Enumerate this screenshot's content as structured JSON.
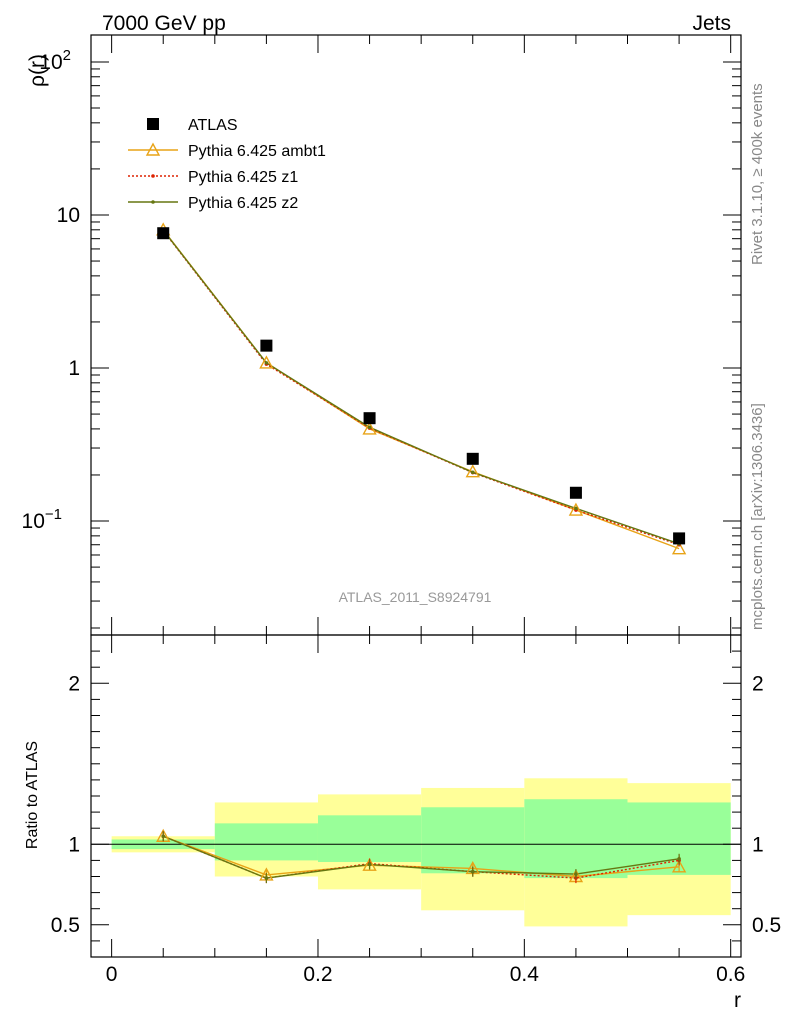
{
  "header": {
    "left_label": "7000 GeV pp",
    "right_label": "Jets"
  },
  "side_labels": {
    "rivet": "Rivet 3.1.10, ≥ 400k events",
    "mcplots": "mcplots.cern.ch [arXiv:1306.3436]"
  },
  "watermark": "ATLAS_2011_S8924791",
  "chart_data": [
    {
      "type": "scatter",
      "panel": "main",
      "ylabel": "ρ(r)",
      "xlabel": "",
      "yscale": "log",
      "xlim": [
        -0.02,
        0.61
      ],
      "ylim": [
        0.018,
        150
      ],
      "yticks": [
        {
          "value": 0.1,
          "base": "10",
          "exp": "−1"
        },
        {
          "value": 1,
          "label": "1"
        },
        {
          "value": 10,
          "label": "10"
        },
        {
          "value": 100,
          "base": "10",
          "exp": "2"
        }
      ],
      "legend_position": "top-left",
      "series": [
        {
          "name": "ATLAS",
          "marker": "square",
          "color": "#000000",
          "x": [
            0.05,
            0.15,
            0.25,
            0.35,
            0.45,
            0.55
          ],
          "y": [
            7.6,
            1.4,
            0.47,
            0.255,
            0.153,
            0.077
          ]
        },
        {
          "name": "Pythia 6.425 ambt1",
          "marker": "triangle",
          "line": "solid",
          "color": "#e8a317",
          "x": [
            0.05,
            0.15,
            0.25,
            0.35,
            0.45,
            0.55
          ],
          "y": [
            8.0,
            1.08,
            0.4,
            0.21,
            0.118,
            0.066
          ]
        },
        {
          "name": "Pythia 6.425 z1",
          "marker": "dot",
          "line": "dotted",
          "color": "#dd2200",
          "x": [
            0.05,
            0.15,
            0.25,
            0.35,
            0.45,
            0.55
          ],
          "y": [
            7.9,
            1.06,
            0.405,
            0.207,
            0.118,
            0.07
          ]
        },
        {
          "name": "Pythia 6.425 z2",
          "marker": "dot",
          "line": "solid",
          "color": "#667711",
          "x": [
            0.05,
            0.15,
            0.25,
            0.35,
            0.45,
            0.55
          ],
          "y": [
            7.95,
            1.08,
            0.41,
            0.208,
            0.121,
            0.071
          ]
        }
      ]
    },
    {
      "type": "line",
      "panel": "ratio",
      "ylabel": "Ratio to ATLAS",
      "xlabel": "r",
      "xlim": [
        -0.02,
        0.61
      ],
      "ylim": [
        0.3,
        2.3
      ],
      "xticks": [
        0,
        0.2,
        0.4,
        0.6
      ],
      "xtick_labels": [
        "0",
        "0.2",
        "0.4",
        "0.6"
      ],
      "yticks": [
        0.5,
        1,
        2
      ],
      "ytick_labels": [
        "0.5",
        "1",
        "2"
      ],
      "bins": [
        [
          0,
          0.1
        ],
        [
          0.1,
          0.2
        ],
        [
          0.2,
          0.3
        ],
        [
          0.3,
          0.4
        ],
        [
          0.4,
          0.5
        ],
        [
          0.5,
          0.6
        ]
      ],
      "band_stat": {
        "color": "#99ff99",
        "lo": [
          0.97,
          0.9,
          0.89,
          0.82,
          0.79,
          0.81
        ],
        "hi": [
          1.03,
          1.13,
          1.18,
          1.23,
          1.28,
          1.26
        ]
      },
      "band_total": {
        "color": "#ffff99",
        "lo": [
          0.95,
          0.8,
          0.72,
          0.59,
          0.49,
          0.56
        ],
        "hi": [
          1.05,
          1.26,
          1.31,
          1.35,
          1.41,
          1.38
        ]
      },
      "series": [
        {
          "name": "Pythia 6.425 ambt1",
          "color": "#e8a317",
          "marker": "triangle",
          "line": "solid",
          "x": [
            0.05,
            0.15,
            0.25,
            0.35,
            0.45,
            0.55
          ],
          "y": [
            1.05,
            0.81,
            0.87,
            0.85,
            0.8,
            0.86
          ]
        },
        {
          "name": "Pythia 6.425 z1",
          "color": "#dd2200",
          "marker": "dot",
          "line": "dotted",
          "x": [
            0.05,
            0.15,
            0.25,
            0.35,
            0.45,
            0.55
          ],
          "y": [
            1.05,
            0.79,
            0.88,
            0.83,
            0.79,
            0.9
          ]
        },
        {
          "name": "Pythia 6.425 z2",
          "color": "#667711",
          "marker": "dot",
          "line": "solid",
          "x": [
            0.05,
            0.15,
            0.25,
            0.35,
            0.45,
            0.55
          ],
          "y": [
            1.05,
            0.79,
            0.875,
            0.83,
            0.815,
            0.91
          ]
        }
      ]
    }
  ]
}
